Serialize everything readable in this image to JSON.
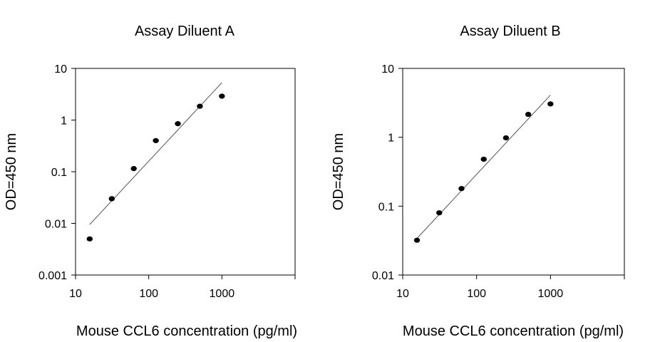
{
  "chart_data": [
    {
      "type": "scatter",
      "title": "Assay Diluent A",
      "xlabel": "Mouse CCL6 concentration (pg/ml)",
      "ylabel": "OD=450 nm",
      "xscale": "log",
      "yscale": "log",
      "xlim": [
        10,
        10000
      ],
      "ylim": [
        0.001,
        10
      ],
      "xticks": [
        "10",
        "100",
        "1000"
      ],
      "yticks": [
        "0.001",
        "0.01",
        "0.1",
        "1",
        "10"
      ],
      "grid": false,
      "legend": "none",
      "series": [
        {
          "x": [
            15.6,
            31.25,
            62.5,
            125,
            250,
            500,
            1000
          ],
          "y": [
            0.005,
            0.03,
            0.115,
            0.4,
            0.85,
            1.85,
            2.9
          ]
        }
      ],
      "fit_line": {
        "x": [
          15.6,
          1000
        ],
        "y": [
          0.0095,
          5.3
        ]
      }
    },
    {
      "type": "scatter",
      "title": "Assay Diluent B",
      "xlabel": "Mouse CCL6 concentration (pg/ml)",
      "ylabel": "OD=450 nm",
      "xscale": "log",
      "yscale": "log",
      "xlim": [
        10,
        10000
      ],
      "ylim": [
        0.01,
        10
      ],
      "xticks": [
        "10",
        "100",
        "1000"
      ],
      "yticks": [
        "0.01",
        "0.1",
        "1",
        "10"
      ],
      "grid": false,
      "legend": "none",
      "series": [
        {
          "x": [
            15.6,
            31.25,
            62.5,
            125,
            250,
            500,
            1000
          ],
          "y": [
            0.032,
            0.08,
            0.18,
            0.48,
            0.98,
            2.15,
            3.05
          ]
        }
      ],
      "fit_line": {
        "x": [
          15.6,
          1000
        ],
        "y": [
          0.034,
          4.1
        ]
      }
    }
  ],
  "colors": {
    "marker": "#000000",
    "axis": "#000000",
    "fit_line": "#555555"
  }
}
